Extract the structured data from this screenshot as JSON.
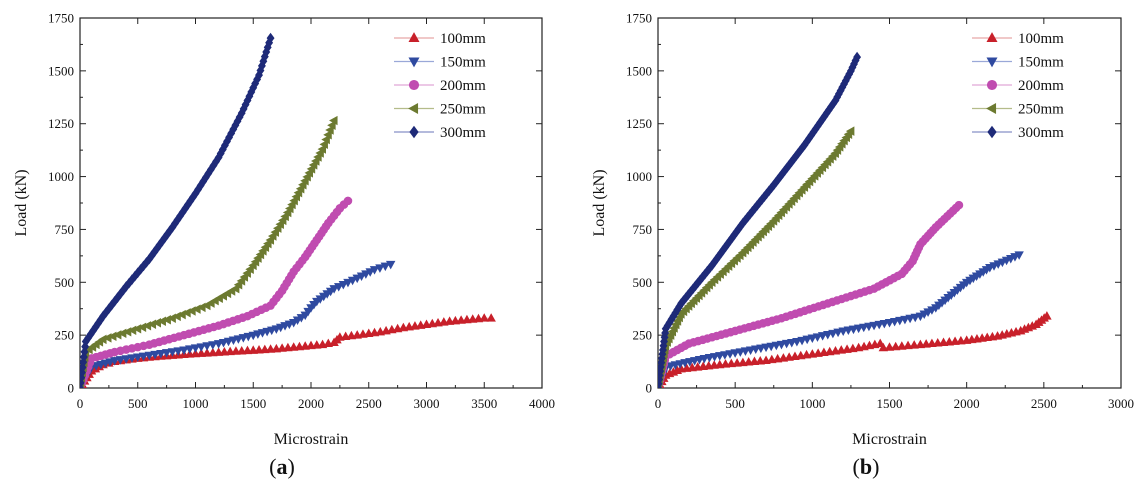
{
  "chart_data": [
    {
      "type": "line",
      "panel_label": "(a)",
      "panel_letter": "a",
      "xlabel": "Microstrain",
      "ylabel": "Load (kN)",
      "xlim": [
        0,
        4000
      ],
      "ylim": [
        0,
        1750
      ],
      "xticks": [
        0,
        500,
        1000,
        1500,
        2000,
        2500,
        3000,
        3500,
        4000
      ],
      "yticks": [
        0,
        250,
        500,
        750,
        1000,
        1250,
        1500,
        1750
      ],
      "grid": false,
      "legend_position": "top-right",
      "series": [
        {
          "name": "100mm",
          "marker": "triangle-up",
          "color": "#c8202a",
          "line_color": "#e8a8a8",
          "points": [
            [
              0,
              0
            ],
            [
              100,
              80
            ],
            [
              200,
              110
            ],
            [
              300,
              125
            ],
            [
              500,
              140
            ],
            [
              700,
              150
            ],
            [
              900,
              158
            ],
            [
              1100,
              165
            ],
            [
              1300,
              172
            ],
            [
              1500,
              178
            ],
            [
              1700,
              185
            ],
            [
              1900,
              195
            ],
            [
              2100,
              205
            ],
            [
              2200,
              215
            ],
            [
              2250,
              240
            ],
            [
              2400,
              250
            ],
            [
              2600,
              265
            ],
            [
              2800,
              285
            ],
            [
              3000,
              300
            ],
            [
              3200,
              315
            ],
            [
              3400,
              325
            ],
            [
              3500,
              330
            ],
            [
              3560,
              330
            ]
          ]
        },
        {
          "name": "150mm",
          "marker": "triangle-down",
          "color": "#2f4aa0",
          "line_color": "#9aa8d8",
          "points": [
            [
              0,
              0
            ],
            [
              100,
              100
            ],
            [
              300,
              130
            ],
            [
              600,
              155
            ],
            [
              900,
              180
            ],
            [
              1200,
              210
            ],
            [
              1500,
              250
            ],
            [
              1700,
              280
            ],
            [
              1850,
              310
            ],
            [
              1950,
              345
            ],
            [
              2000,
              380
            ],
            [
              2050,
              410
            ],
            [
              2200,
              470
            ],
            [
              2400,
              520
            ],
            [
              2550,
              560
            ],
            [
              2690,
              585
            ]
          ]
        },
        {
          "name": "200mm",
          "marker": "circle",
          "color": "#c04cb0",
          "line_color": "#e0a8d8",
          "points": [
            [
              0,
              0
            ],
            [
              100,
              140
            ],
            [
              300,
              170
            ],
            [
              600,
              205
            ],
            [
              900,
              250
            ],
            [
              1200,
              295
            ],
            [
              1450,
              340
            ],
            [
              1650,
              390
            ],
            [
              1750,
              460
            ],
            [
              1850,
              550
            ],
            [
              1950,
              620
            ],
            [
              2050,
              700
            ],
            [
              2150,
              780
            ],
            [
              2250,
              850
            ],
            [
              2320,
              885
            ]
          ]
        },
        {
          "name": "250mm",
          "marker": "triangle-left",
          "color": "#6c7a30",
          "line_color": "#b4bc8a",
          "points": [
            [
              0,
              0
            ],
            [
              50,
              170
            ],
            [
              200,
              230
            ],
            [
              500,
              280
            ],
            [
              800,
              330
            ],
            [
              1100,
              390
            ],
            [
              1350,
              470
            ],
            [
              1500,
              580
            ],
            [
              1650,
              700
            ],
            [
              1800,
              830
            ],
            [
              1950,
              980
            ],
            [
              2100,
              1130
            ],
            [
              2200,
              1265
            ]
          ]
        },
        {
          "name": "300mm",
          "marker": "diamond",
          "color": "#1e2a78",
          "line_color": "#8890c8",
          "points": [
            [
              0,
              0
            ],
            [
              50,
              220
            ],
            [
              200,
              340
            ],
            [
              400,
              480
            ],
            [
              600,
              610
            ],
            [
              800,
              760
            ],
            [
              1000,
              920
            ],
            [
              1200,
              1090
            ],
            [
              1400,
              1300
            ],
            [
              1550,
              1480
            ],
            [
              1650,
              1655
            ]
          ]
        }
      ]
    },
    {
      "type": "line",
      "panel_label": "(b)",
      "panel_letter": "b",
      "xlabel": "Microstrain",
      "ylabel": "Load (kN)",
      "xlim": [
        0,
        3000
      ],
      "ylim": [
        0,
        1750
      ],
      "xticks": [
        0,
        500,
        1000,
        1500,
        2000,
        2500,
        3000
      ],
      "yticks": [
        0,
        250,
        500,
        750,
        1000,
        1250,
        1500,
        1750
      ],
      "grid": false,
      "legend_position": "top-right",
      "series": [
        {
          "name": "100mm",
          "marker": "triangle-up",
          "color": "#c8202a",
          "line_color": "#e8a8a8",
          "points": [
            [
              0,
              0
            ],
            [
              50,
              60
            ],
            [
              150,
              90
            ],
            [
              400,
              110
            ],
            [
              700,
              130
            ],
            [
              1000,
              160
            ],
            [
              1300,
              190
            ],
            [
              1440,
              210
            ],
            [
              1460,
              190
            ],
            [
              1700,
              205
            ],
            [
              2000,
              225
            ],
            [
              2200,
              245
            ],
            [
              2350,
              270
            ],
            [
              2450,
              300
            ],
            [
              2520,
              340
            ]
          ]
        },
        {
          "name": "150mm",
          "marker": "triangle-down",
          "color": "#2f4aa0",
          "line_color": "#9aa8d8",
          "points": [
            [
              0,
              0
            ],
            [
              50,
              100
            ],
            [
              300,
              140
            ],
            [
              600,
              180
            ],
            [
              900,
              220
            ],
            [
              1200,
              270
            ],
            [
              1500,
              310
            ],
            [
              1700,
              340
            ],
            [
              1800,
              380
            ],
            [
              1900,
              440
            ],
            [
              2000,
              500
            ],
            [
              2150,
              570
            ],
            [
              2340,
              630
            ]
          ]
        },
        {
          "name": "200mm",
          "marker": "circle",
          "color": "#c04cb0",
          "line_color": "#e0a8d8",
          "points": [
            [
              0,
              0
            ],
            [
              50,
              150
            ],
            [
              200,
              210
            ],
            [
              500,
              270
            ],
            [
              800,
              330
            ],
            [
              1100,
              400
            ],
            [
              1400,
              470
            ],
            [
              1580,
              540
            ],
            [
              1650,
              600
            ],
            [
              1700,
              680
            ],
            [
              1800,
              760
            ],
            [
              1950,
              865
            ]
          ]
        },
        {
          "name": "250mm",
          "marker": "triangle-left",
          "color": "#6c7a30",
          "line_color": "#b4bc8a",
          "points": [
            [
              0,
              0
            ],
            [
              50,
              200
            ],
            [
              150,
              350
            ],
            [
              350,
              500
            ],
            [
              550,
              640
            ],
            [
              750,
              790
            ],
            [
              950,
              950
            ],
            [
              1150,
              1110
            ],
            [
              1250,
              1215
            ]
          ]
        },
        {
          "name": "300mm",
          "marker": "diamond",
          "color": "#1e2a78",
          "line_color": "#8890c8",
          "points": [
            [
              0,
              0
            ],
            [
              50,
              280
            ],
            [
              150,
              400
            ],
            [
              350,
              580
            ],
            [
              550,
              780
            ],
            [
              750,
              960
            ],
            [
              950,
              1150
            ],
            [
              1150,
              1360
            ],
            [
              1250,
              1500
            ],
            [
              1290,
              1565
            ]
          ]
        }
      ]
    }
  ]
}
